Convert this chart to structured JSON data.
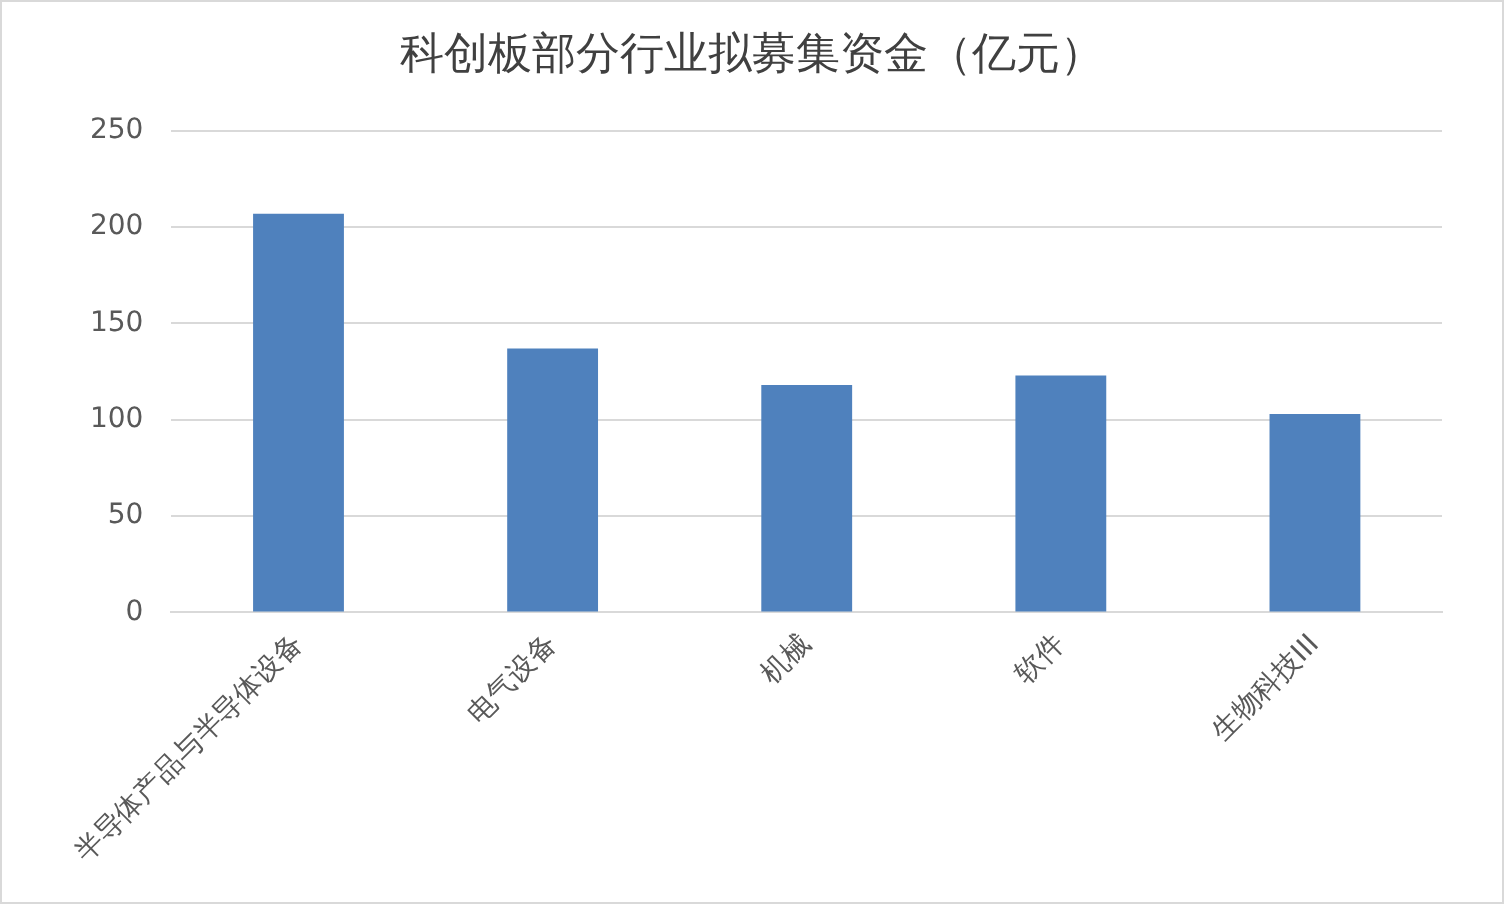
{
  "chart_data": {
    "type": "bar",
    "title": "科创板部分行业拟募集资金（亿元）",
    "categories": [
      "半导体产品与半导体设备",
      "电气设备",
      "机械",
      "软件",
      "生物科技III"
    ],
    "values": [
      207,
      137,
      118,
      123,
      103
    ],
    "color": "#4f81bd",
    "ylim": [
      0,
      250
    ],
    "yticks": [
      0,
      50,
      100,
      150,
      200,
      250
    ],
    "grid": "y",
    "legend": false
  }
}
